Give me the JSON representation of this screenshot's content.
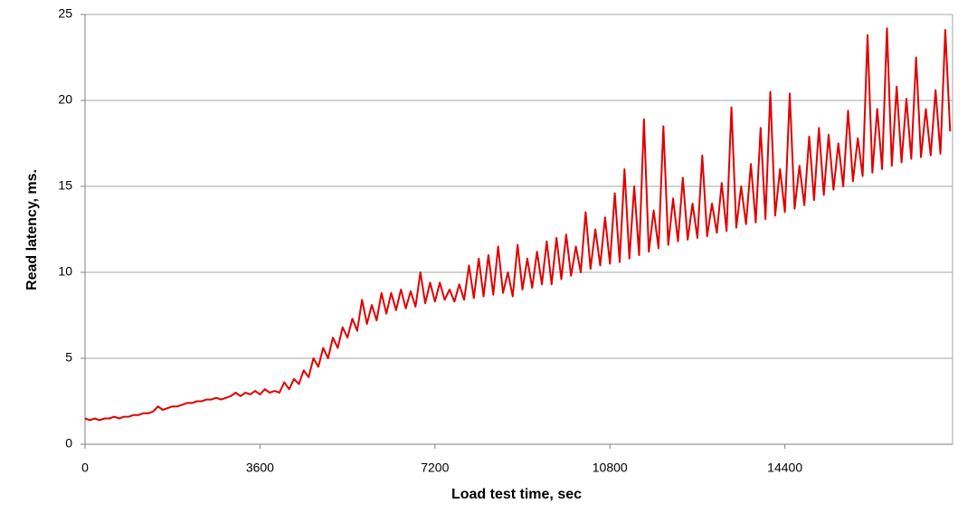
{
  "chart_data": {
    "type": "line",
    "x_label": "Load test time, sec",
    "y_label": "Read latency, ms.",
    "color": "#e00000",
    "grid": true,
    "xlim": [
      0,
      17850
    ],
    "ylim": [
      0,
      25
    ],
    "xticks": [
      0,
      3600,
      7200,
      10800,
      14400
    ],
    "yticks": [
      0,
      5,
      10,
      15,
      20,
      25
    ],
    "x": [
      0,
      100,
      200,
      300,
      400,
      500,
      600,
      700,
      800,
      900,
      1000,
      1100,
      1200,
      1300,
      1400,
      1500,
      1600,
      1700,
      1800,
      1900,
      2000,
      2100,
      2200,
      2300,
      2400,
      2500,
      2600,
      2700,
      2800,
      2900,
      3000,
      3100,
      3200,
      3300,
      3400,
      3500,
      3600,
      3700,
      3800,
      3900,
      4000,
      4100,
      4200,
      4300,
      4400,
      4500,
      4600,
      4700,
      4800,
      4900,
      5000,
      5100,
      5200,
      5300,
      5400,
      5500,
      5600,
      5700,
      5800,
      5900,
      6000,
      6100,
      6200,
      6300,
      6400,
      6500,
      6600,
      6700,
      6800,
      6900,
      7000,
      7100,
      7200,
      7300,
      7400,
      7500,
      7600,
      7700,
      7800,
      7900,
      8000,
      8100,
      8200,
      8300,
      8400,
      8500,
      8600,
      8700,
      8800,
      8900,
      9000,
      9100,
      9200,
      9300,
      9400,
      9500,
      9600,
      9700,
      9800,
      9900,
      10000,
      10100,
      10200,
      10300,
      10400,
      10500,
      10600,
      10700,
      10800,
      10900,
      11000,
      11100,
      11200,
      11300,
      11400,
      11500,
      11600,
      11700,
      11800,
      11900,
      12000,
      12100,
      12200,
      12300,
      12400,
      12500,
      12600,
      12700,
      12800,
      12900,
      13000,
      13100,
      13200,
      13300,
      13400,
      13500,
      13600,
      13700,
      13800,
      13900,
      14000,
      14100,
      14200,
      14300,
      14400,
      14500,
      14600,
      14700,
      14800,
      14900,
      15000,
      15100,
      15200,
      15300,
      15400,
      15500,
      15600,
      15700,
      15800,
      15900,
      16000,
      16100,
      16200,
      16300,
      16400,
      16500,
      16600,
      16700,
      16800,
      16900,
      17000,
      17100,
      17200,
      17300,
      17400,
      17500,
      17600,
      17700,
      17800
    ],
    "values": [
      1.5,
      1.4,
      1.5,
      1.4,
      1.5,
      1.5,
      1.6,
      1.5,
      1.6,
      1.6,
      1.7,
      1.7,
      1.8,
      1.8,
      1.9,
      2.2,
      2.0,
      2.1,
      2.2,
      2.2,
      2.3,
      2.4,
      2.4,
      2.5,
      2.5,
      2.6,
      2.6,
      2.7,
      2.6,
      2.7,
      2.8,
      3.0,
      2.8,
      3.0,
      2.9,
      3.1,
      2.9,
      3.2,
      3.0,
      3.1,
      3.0,
      3.6,
      3.2,
      3.8,
      3.5,
      4.3,
      3.9,
      5.0,
      4.5,
      5.6,
      5.0,
      6.2,
      5.6,
      6.8,
      6.2,
      7.3,
      6.6,
      8.4,
      7.0,
      8.1,
      7.2,
      8.8,
      7.6,
      8.8,
      7.8,
      9.0,
      7.9,
      8.9,
      8.0,
      10.0,
      8.2,
      9.4,
      8.3,
      9.4,
      8.4,
      9.0,
      8.3,
      9.3,
      8.4,
      10.4,
      8.5,
      10.8,
      8.6,
      11.0,
      8.7,
      11.5,
      8.8,
      10.0,
      8.6,
      11.6,
      9.0,
      10.8,
      9.1,
      11.2,
      9.3,
      11.8,
      9.3,
      12.0,
      9.6,
      12.2,
      9.8,
      11.5,
      10.0,
      13.5,
      10.2,
      12.5,
      10.4,
      13.2,
      10.5,
      14.6,
      10.6,
      16.0,
      10.8,
      15.0,
      11.0,
      18.9,
      11.2,
      13.6,
      11.4,
      18.5,
      11.6,
      14.3,
      11.8,
      15.5,
      11.9,
      14.0,
      12.0,
      16.8,
      12.1,
      14.0,
      12.3,
      15.2,
      12.4,
      19.6,
      12.6,
      15.0,
      12.8,
      16.3,
      12.9,
      18.4,
      13.1,
      20.5,
      13.3,
      16.0,
      13.5,
      20.4,
      13.7,
      16.2,
      13.9,
      17.9,
      14.2,
      18.4,
      14.5,
      18.0,
      14.8,
      17.5,
      15.0,
      19.4,
      15.3,
      17.8,
      15.6,
      23.8,
      15.8,
      19.5,
      16.0,
      24.2,
      16.2,
      20.8,
      16.4,
      20.1,
      16.6,
      22.5,
      16.7,
      19.5,
      16.8,
      20.6,
      16.9,
      24.1,
      18.2
    ]
  }
}
